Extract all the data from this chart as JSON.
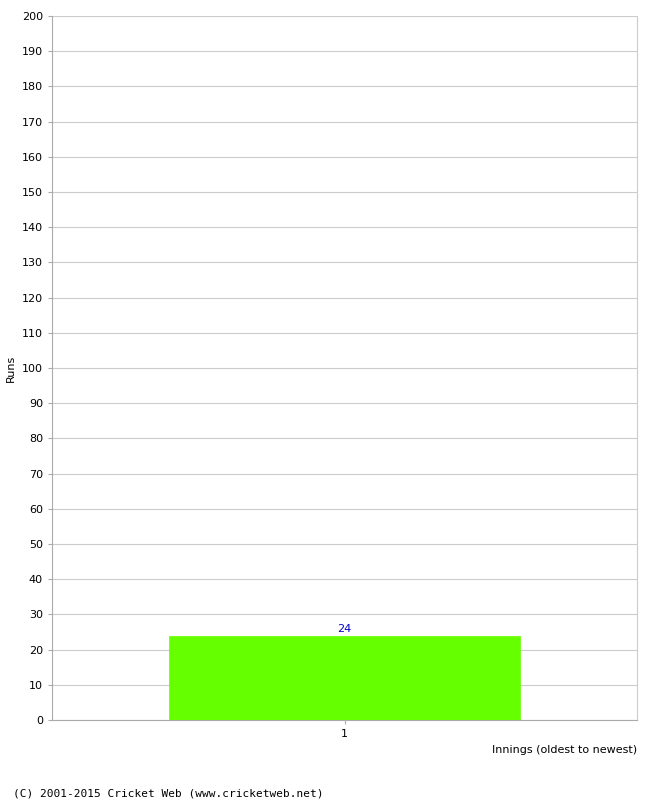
{
  "title": "",
  "ylabel": "Runs",
  "xlabel": "Innings (oldest to newest)",
  "bar_values": [
    24
  ],
  "bar_positions": [
    1
  ],
  "bar_color": "#66ff00",
  "bar_edgecolor": "#66ff00",
  "label_color": "#0000cc",
  "ylim": [
    0,
    200
  ],
  "ytick_step": 10,
  "xtick_labels": [
    "1"
  ],
  "xtick_positions": [
    1
  ],
  "copyright": "(C) 2001-2015 Cricket Web (www.cricketweb.net)",
  "background_color": "#ffffff",
  "grid_color": "#cccccc",
  "bar_width": 0.6,
  "label_fontsize": 8,
  "axis_fontsize": 8,
  "tick_fontsize": 8,
  "copyright_fontsize": 8,
  "xlabel_fontsize": 8,
  "ylabel_fontsize": 8
}
